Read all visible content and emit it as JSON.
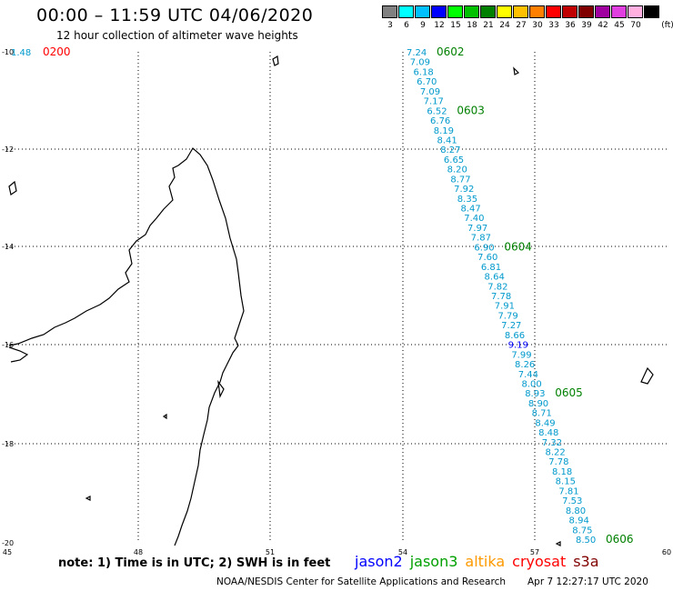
{
  "header": {
    "title": "00:00 – 11:59 UTC 04/06/2020",
    "subtitle": "12 hour collection of altimeter wave heights"
  },
  "legend": {
    "unit": "(ft)",
    "bins": [
      {
        "label": "3",
        "color": "#808080"
      },
      {
        "label": "6",
        "color": "#00ffff"
      },
      {
        "label": "9",
        "color": "#00c0ff"
      },
      {
        "label": "12",
        "color": "#0000ff"
      },
      {
        "label": "15",
        "color": "#00ff00"
      },
      {
        "label": "18",
        "color": "#00c000"
      },
      {
        "label": "21",
        "color": "#008000"
      },
      {
        "label": "24",
        "color": "#ffff00"
      },
      {
        "label": "27",
        "color": "#ffc000"
      },
      {
        "label": "30",
        "color": "#ff8000"
      },
      {
        "label": "33",
        "color": "#ff0000"
      },
      {
        "label": "36",
        "color": "#c00000"
      },
      {
        "label": "39",
        "color": "#800000"
      },
      {
        "label": "42",
        "color": "#a000a0"
      },
      {
        "label": "45",
        "color": "#e040e0"
      },
      {
        "label": "70",
        "color": "#ffb0e0"
      },
      {
        "label": "",
        "color": "#000000"
      }
    ]
  },
  "axes": {
    "lon_labels": [
      "45",
      "48",
      "51",
      "54",
      "57",
      "60"
    ],
    "lat_labels": [
      "-10",
      "-12",
      "-14",
      "-16",
      "-18",
      "-20"
    ]
  },
  "map_labels": {
    "left_value": "1.48",
    "left_time": "0200",
    "time_color_left": "#ff0000",
    "time_color_track": "#008000",
    "value_color": "#0099cc"
  },
  "track": {
    "times": [
      "0602",
      "0603",
      "0604",
      "0605",
      "0606"
    ],
    "values": [
      "7.24",
      "7.09",
      "6.18",
      "6.70",
      "7.09",
      "7.17",
      "6.52",
      "6.76",
      "8.19",
      "8.41",
      "8.27",
      "6.65",
      "8.20",
      "8.77",
      "7.92",
      "8.35",
      "8.47",
      "7.40",
      "7.97",
      "7.87",
      "6.90",
      "7.60",
      "6.81",
      "8.64",
      "7.82",
      "7.78",
      "7.91",
      "7.79",
      "7.27",
      "8.66",
      "9.19",
      "7.99",
      "8.26",
      "7.44",
      "8.00",
      "8.93",
      "8.90",
      "8.71",
      "8.49",
      "8.48",
      "7.32",
      "8.22",
      "7.78",
      "8.18",
      "8.15",
      "7.81",
      "7.53",
      "8.80",
      "8.94",
      "8.75",
      "8.50"
    ]
  },
  "footer": {
    "note": "note: 1) Time is in UTC; 2) SWH is in feet",
    "satellites": [
      {
        "name": "jason2",
        "color": "#0000ff"
      },
      {
        "name": "jason3",
        "color": "#00a000"
      },
      {
        "name": "altika",
        "color": "#ff9900"
      },
      {
        "name": "cryosat",
        "color": "#ff0000"
      },
      {
        "name": "s3a",
        "color": "#800000"
      }
    ],
    "credit": "NOAA/NESDIS Center for Satellite Applications and Research",
    "timestamp": "Apr  7 12:27:17 UTC 2020"
  }
}
